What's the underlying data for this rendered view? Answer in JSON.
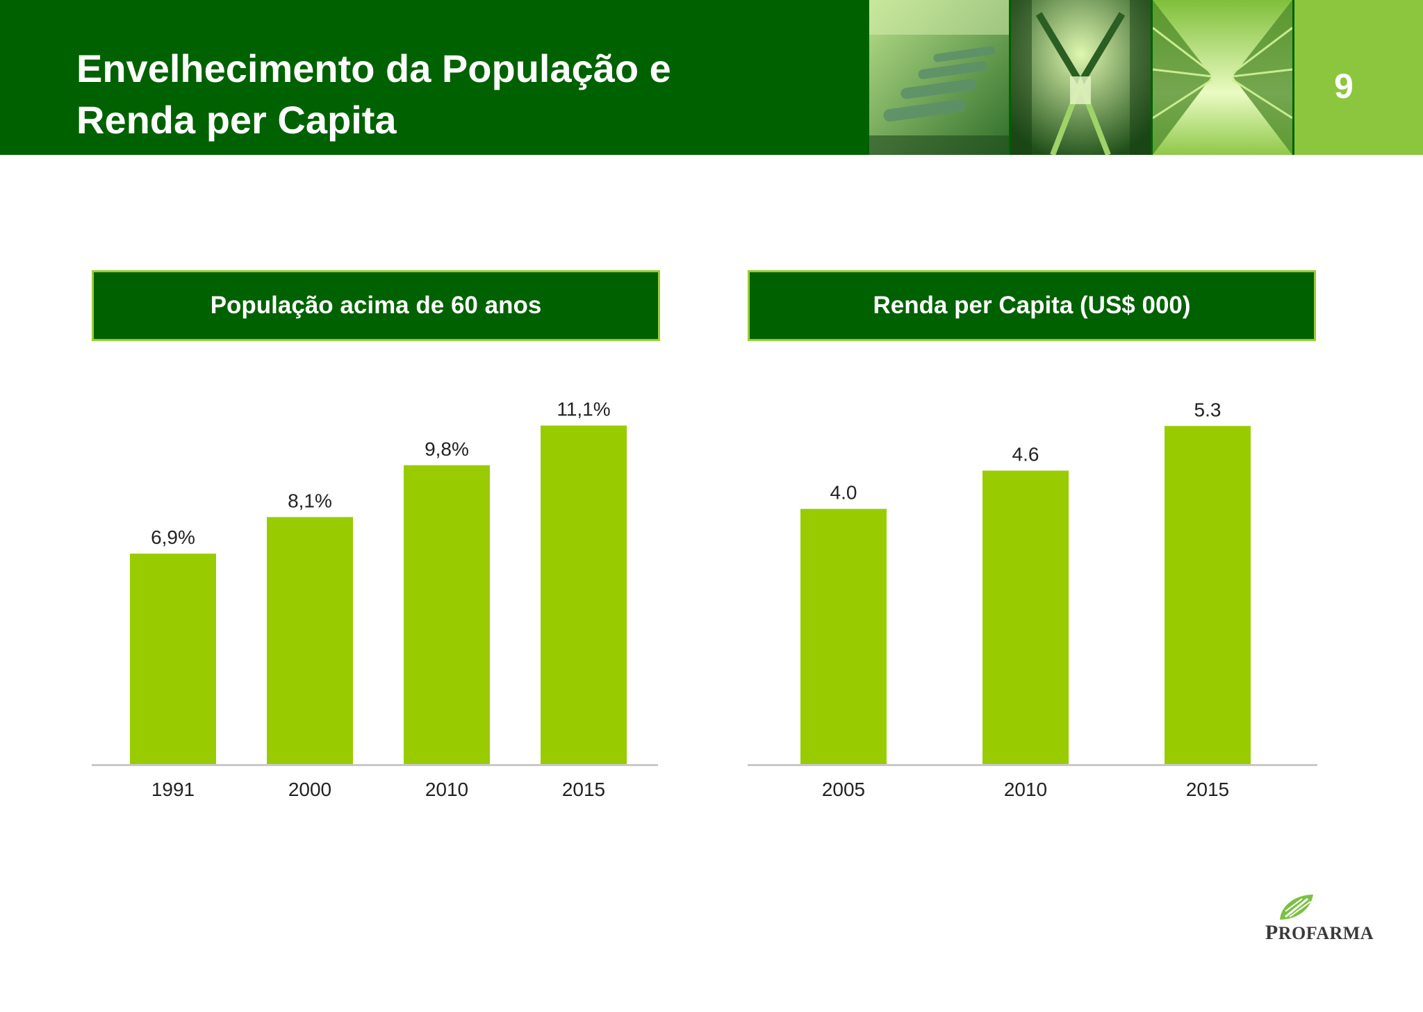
{
  "header": {
    "title_line1": "Envelhecimento da População e",
    "title_line2": "Renda per Capita",
    "page_number": "9"
  },
  "colors": {
    "header_green": "#006100",
    "bar_green": "#99cc00",
    "light_green": "#8cc63f"
  },
  "chart_data": [
    {
      "type": "bar",
      "title": "População acima de 60 anos",
      "categories": [
        "1991",
        "2000",
        "2010",
        "2015"
      ],
      "values": [
        6.9,
        8.1,
        9.8,
        11.1
      ],
      "value_labels": [
        "6,9%",
        "8,1%",
        "9,8%",
        "11,1%"
      ],
      "ylim": [
        0,
        12.3
      ],
      "grid": false,
      "legend": "none"
    },
    {
      "type": "bar",
      "title": "Renda per Capita (US$ 000)",
      "categories": [
        "2005",
        "2010",
        "2015"
      ],
      "values": [
        4.0,
        4.6,
        5.3
      ],
      "value_labels": [
        "4.0",
        "4.6",
        "5.3"
      ],
      "ylim": [
        0,
        5.88
      ],
      "grid": false,
      "legend": "none"
    }
  ],
  "logo": {
    "initial": "P",
    "rest": "ROFARMA",
    "icon": "profarma-leaf-icon"
  }
}
